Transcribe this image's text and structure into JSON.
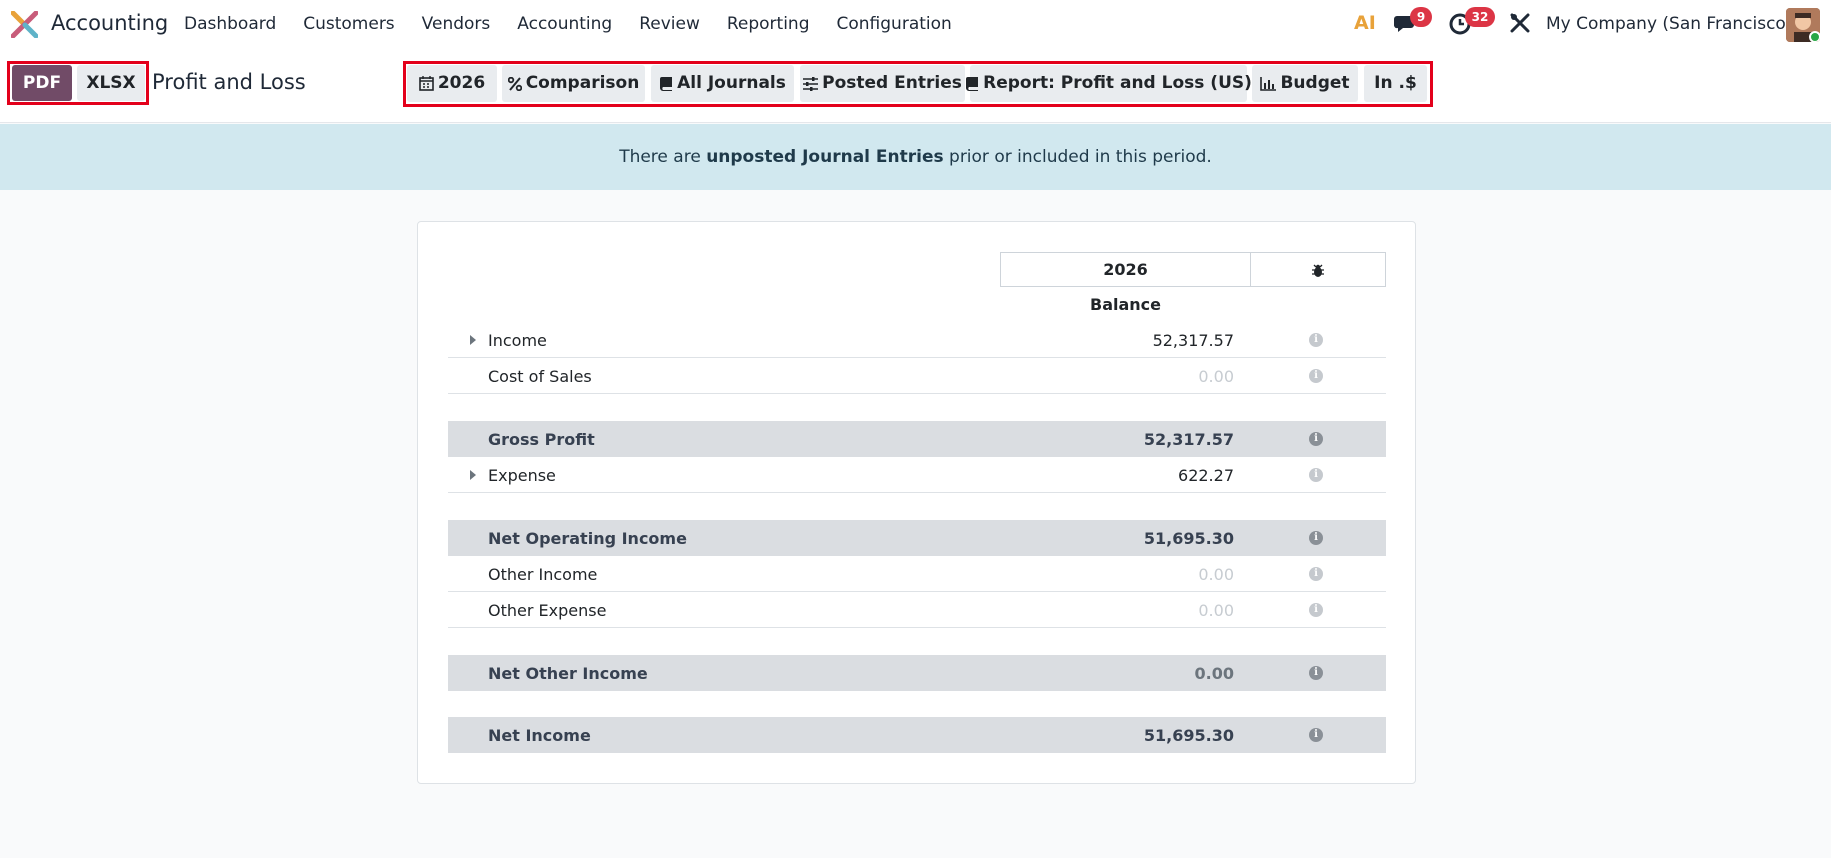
{
  "navbar": {
    "app_name": "Accounting",
    "menu": [
      "Dashboard",
      "Customers",
      "Vendors",
      "Accounting",
      "Review",
      "Reporting",
      "Configuration"
    ],
    "ai_label": "AI",
    "messages_count": "9",
    "activities_count": "32",
    "company": "My Company (San Francisco)"
  },
  "control": {
    "pdf_label": "PDF",
    "xlsx_label": "XLSX",
    "title": "Profit and Loss",
    "filters": {
      "year": "2026",
      "comparison": "Comparison",
      "journals": "All Journals",
      "entries": "Posted Entries",
      "report": "Report: Profit and Loss (US)",
      "budget": "Budget",
      "currency": "In .$"
    }
  },
  "banner": {
    "prefix": "There are ",
    "link": "unposted Journal Entries",
    "suffix": " prior or included in this period."
  },
  "report": {
    "column_year": "2026",
    "balance_label": "Balance",
    "rows": [
      {
        "label": "Income",
        "amount": "52,317.57"
      },
      {
        "label": "Cost of Sales",
        "amount": "0.00"
      },
      {
        "label": "Gross Profit",
        "amount": "52,317.57"
      },
      {
        "label": "Expense",
        "amount": "622.27"
      },
      {
        "label": "Net Operating Income",
        "amount": "51,695.30"
      },
      {
        "label": "Other Income",
        "amount": "0.00"
      },
      {
        "label": "Other Expense",
        "amount": "0.00"
      },
      {
        "label": "Net Other Income",
        "amount": "0.00"
      },
      {
        "label": "Net Income",
        "amount": "51,695.30"
      }
    ]
  },
  "colors": {
    "brand": "#714b67",
    "highlight_border": "#e3001b",
    "badge": "#dc3545",
    "banner_bg": "#d1e8ef",
    "total_row_bg": "#dadde1"
  }
}
